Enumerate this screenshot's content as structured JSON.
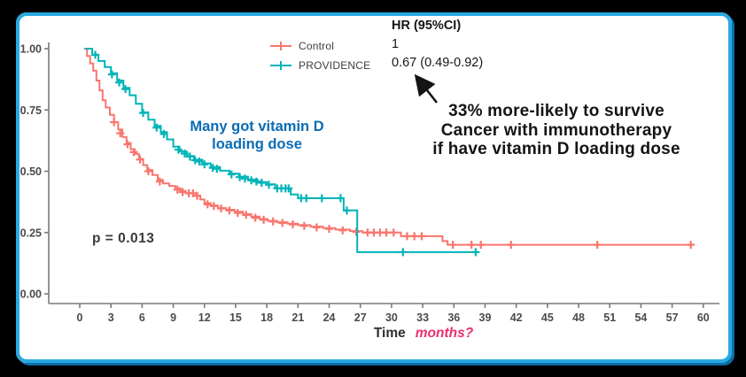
{
  "frame": {
    "border_color": "#29A9E1",
    "background": "#000000",
    "card_background": "#ffffff"
  },
  "legend": {
    "entries": [
      {
        "label": "Control",
        "color": "#F8766D"
      },
      {
        "label": "PROVIDENCE",
        "color": "#00B4B8"
      }
    ]
  },
  "hr_block": {
    "header": "HR (95%CI)",
    "control_value": "1",
    "providence_value": "0.67 (0.49-0.92)"
  },
  "annotations": {
    "survival_note_lines": [
      "33% more-likely to survive",
      "Cancer with immunotherapy",
      "if have vitamin D loading dose"
    ],
    "vitamin_note_lines": [
      "Many got vitamin D",
      "loading dose"
    ],
    "pvalue": "p = 0.013",
    "time_label": "Time",
    "months_label": "months?",
    "vitamin_note_color": "#0B6CB5",
    "months_color": "#EC2F6D"
  },
  "chart_data": {
    "type": "line",
    "subtype": "kaplan-meier-step",
    "title": "",
    "xlabel": "Time",
    "ylabel": "",
    "xlim": [
      0,
      62
    ],
    "ylim": [
      0,
      1.0
    ],
    "grid": false,
    "legend_position": "top-center",
    "xticks": [
      0,
      3,
      6,
      9,
      12,
      15,
      18,
      21,
      24,
      27,
      30,
      33,
      36,
      39,
      42,
      45,
      48,
      51,
      54,
      57,
      60
    ],
    "yticks": [
      {
        "v": 0.0,
        "label": "0.00"
      },
      {
        "v": 0.25,
        "label": "0.25"
      },
      {
        "v": 0.5,
        "label": "0.50"
      },
      {
        "v": 0.75,
        "label": "0.75"
      },
      {
        "v": 1.0,
        "label": "1.00"
      }
    ],
    "pvalue": "p = 0.013",
    "series": [
      {
        "name": "Control",
        "color": "#F8766D",
        "steps": [
          [
            0.4,
            1.0
          ],
          [
            0.7,
            0.97
          ],
          [
            1.0,
            0.94
          ],
          [
            1.3,
            0.91
          ],
          [
            1.6,
            0.87
          ],
          [
            1.9,
            0.83
          ],
          [
            2.2,
            0.79
          ],
          [
            2.5,
            0.76
          ],
          [
            2.9,
            0.73
          ],
          [
            3.3,
            0.7
          ],
          [
            3.7,
            0.67
          ],
          [
            4.1,
            0.64
          ],
          [
            4.5,
            0.615
          ],
          [
            4.9,
            0.59
          ],
          [
            5.3,
            0.57
          ],
          [
            5.7,
            0.55
          ],
          [
            6.1,
            0.525
          ],
          [
            6.5,
            0.505
          ],
          [
            7.0,
            0.485
          ],
          [
            7.5,
            0.465
          ],
          [
            8.0,
            0.45
          ],
          [
            8.6,
            0.44
          ],
          [
            9.2,
            0.43
          ],
          [
            9.7,
            0.42
          ],
          [
            10.2,
            0.41
          ],
          [
            11.2,
            0.4
          ],
          [
            11.6,
            0.385
          ],
          [
            12.0,
            0.37
          ],
          [
            12.6,
            0.36
          ],
          [
            13.3,
            0.35
          ],
          [
            14.1,
            0.343
          ],
          [
            14.9,
            0.335
          ],
          [
            15.7,
            0.325
          ],
          [
            16.5,
            0.315
          ],
          [
            17.3,
            0.305
          ],
          [
            18.1,
            0.298
          ],
          [
            19.0,
            0.292
          ],
          [
            20.0,
            0.286
          ],
          [
            21.0,
            0.28
          ],
          [
            22.2,
            0.274
          ],
          [
            23.4,
            0.268
          ],
          [
            24.6,
            0.262
          ],
          [
            26.0,
            0.256
          ],
          [
            27.2,
            0.25
          ],
          [
            30.9,
            0.235
          ],
          [
            34.9,
            0.215
          ],
          [
            35.4,
            0.2
          ],
          [
            58.8,
            0.2
          ]
        ],
        "censors": [
          [
            3.3,
            0.7
          ],
          [
            3.9,
            0.655
          ],
          [
            4.6,
            0.61
          ],
          [
            5.2,
            0.578
          ],
          [
            5.8,
            0.548
          ],
          [
            6.6,
            0.5
          ],
          [
            7.7,
            0.458
          ],
          [
            9.4,
            0.425
          ],
          [
            9.9,
            0.415
          ],
          [
            10.5,
            0.41
          ],
          [
            10.9,
            0.41
          ],
          [
            11.3,
            0.4
          ],
          [
            12.3,
            0.365
          ],
          [
            12.9,
            0.358
          ],
          [
            13.6,
            0.348
          ],
          [
            14.4,
            0.34
          ],
          [
            15.2,
            0.33
          ],
          [
            16.0,
            0.322
          ],
          [
            16.9,
            0.31
          ],
          [
            17.7,
            0.302
          ],
          [
            18.6,
            0.295
          ],
          [
            19.5,
            0.289
          ],
          [
            20.5,
            0.283
          ],
          [
            21.6,
            0.277
          ],
          [
            22.8,
            0.271
          ],
          [
            24.0,
            0.265
          ],
          [
            25.3,
            0.259
          ],
          [
            26.6,
            0.253
          ],
          [
            27.7,
            0.25
          ],
          [
            28.3,
            0.25
          ],
          [
            28.9,
            0.25
          ],
          [
            29.5,
            0.25
          ],
          [
            30.2,
            0.25
          ],
          [
            31.5,
            0.235
          ],
          [
            32.2,
            0.235
          ],
          [
            32.9,
            0.235
          ],
          [
            35.9,
            0.2
          ],
          [
            37.7,
            0.2
          ],
          [
            38.6,
            0.2
          ],
          [
            41.5,
            0.2
          ],
          [
            49.8,
            0.2
          ],
          [
            58.8,
            0.2
          ]
        ]
      },
      {
        "name": "PROVIDENCE",
        "color": "#00B4B8",
        "steps": [
          [
            0.5,
            1.0
          ],
          [
            1.2,
            0.975
          ],
          [
            1.8,
            0.95
          ],
          [
            2.4,
            0.925
          ],
          [
            3.0,
            0.9
          ],
          [
            3.6,
            0.87
          ],
          [
            4.2,
            0.84
          ],
          [
            4.8,
            0.81
          ],
          [
            5.4,
            0.775
          ],
          [
            6.0,
            0.74
          ],
          [
            6.6,
            0.71
          ],
          [
            7.2,
            0.685
          ],
          [
            7.8,
            0.66
          ],
          [
            8.4,
            0.63
          ],
          [
            9.0,
            0.6
          ],
          [
            9.6,
            0.58
          ],
          [
            10.3,
            0.562
          ],
          [
            11.0,
            0.547
          ],
          [
            11.8,
            0.532
          ],
          [
            12.6,
            0.517
          ],
          [
            13.5,
            0.502
          ],
          [
            14.4,
            0.49
          ],
          [
            15.3,
            0.478
          ],
          [
            16.2,
            0.466
          ],
          [
            17.1,
            0.456
          ],
          [
            18.0,
            0.447
          ],
          [
            18.8,
            0.43
          ],
          [
            20.3,
            0.405
          ],
          [
            21.0,
            0.39
          ],
          [
            25.4,
            0.34
          ],
          [
            26.7,
            0.17
          ],
          [
            38.1,
            0.17
          ]
        ],
        "censors": [
          [
            1.5,
            0.975
          ],
          [
            3.1,
            0.895
          ],
          [
            3.8,
            0.862
          ],
          [
            4.4,
            0.835
          ],
          [
            6.1,
            0.738
          ],
          [
            7.4,
            0.678
          ],
          [
            8.1,
            0.652
          ],
          [
            9.5,
            0.588
          ],
          [
            10.1,
            0.572
          ],
          [
            10.6,
            0.56
          ],
          [
            11.1,
            0.545
          ],
          [
            11.5,
            0.54
          ],
          [
            12.0,
            0.528
          ],
          [
            12.8,
            0.514
          ],
          [
            13.2,
            0.51
          ],
          [
            14.6,
            0.487
          ],
          [
            15.4,
            0.476
          ],
          [
            15.9,
            0.47
          ],
          [
            16.5,
            0.463
          ],
          [
            17.0,
            0.458
          ],
          [
            17.5,
            0.453
          ],
          [
            18.2,
            0.445
          ],
          [
            19.0,
            0.43
          ],
          [
            19.4,
            0.43
          ],
          [
            19.8,
            0.43
          ],
          [
            20.1,
            0.43
          ],
          [
            21.3,
            0.39
          ],
          [
            21.8,
            0.39
          ],
          [
            23.3,
            0.39
          ],
          [
            25.1,
            0.39
          ],
          [
            25.7,
            0.34
          ],
          [
            31.1,
            0.17
          ],
          [
            38.1,
            0.17
          ]
        ]
      }
    ]
  }
}
